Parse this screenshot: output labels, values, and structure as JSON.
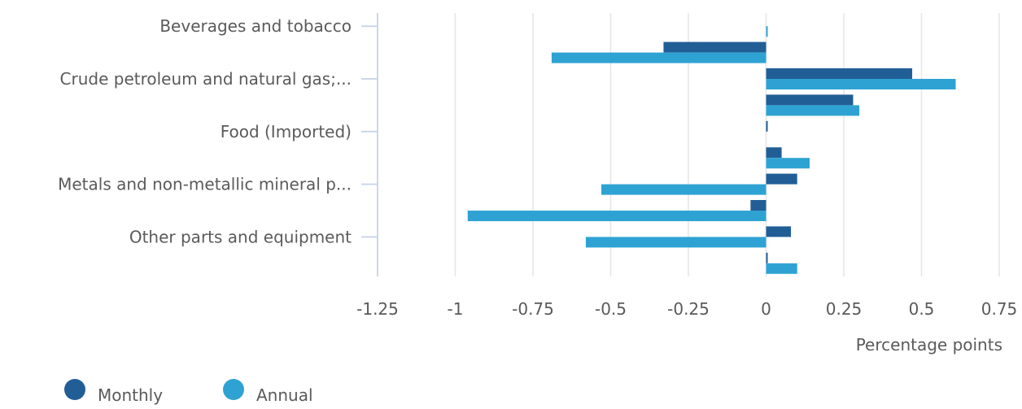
{
  "chart_data": {
    "type": "bar",
    "orientation": "horizontal",
    "xlabel": "Percentage points",
    "xlim": [
      -1.25,
      0.75
    ],
    "xticks": [
      -1.25,
      -1,
      -0.75,
      -0.5,
      -0.25,
      0,
      0.25,
      0.5,
      0.75
    ],
    "xtick_labels": [
      "-1.25",
      "-1",
      "-0.75",
      "-0.5",
      "-0.25",
      "0",
      "0.25",
      "0.5",
      "0.75"
    ],
    "grid": true,
    "legend_position": "bottom-left",
    "labeled_rows": [
      0,
      2,
      4,
      6,
      8
    ],
    "categories": [
      "Beverages and tobacco",
      "",
      "Crude petroleum and natural gas;...",
      "",
      "Food (Imported)",
      "",
      "Metals and non-metallic mineral p...",
      "",
      "Other parts and equipment",
      ""
    ],
    "series": [
      {
        "name": "Monthly",
        "color": "#225e96",
        "values": [
          0.0,
          -0.33,
          0.47,
          0.28,
          0.005,
          0.05,
          0.1,
          -0.05,
          0.08,
          0.005
        ]
      },
      {
        "name": "Annual",
        "color": "#2ea3d3",
        "values": [
          0.005,
          -0.69,
          0.61,
          0.3,
          0.0,
          0.14,
          -0.53,
          -0.96,
          -0.58,
          0.1
        ]
      }
    ]
  }
}
